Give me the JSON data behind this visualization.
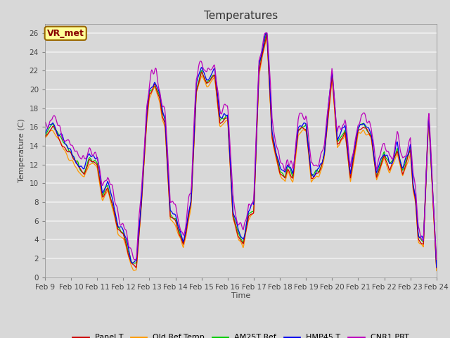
{
  "title": "Temperatures",
  "xlabel": "Time",
  "ylabel": "Temperature (C)",
  "ylim": [
    0,
    27
  ],
  "series_colors": {
    "Panel T": "#cc0000",
    "Old Ref Temp": "#ff9900",
    "AM25T Ref": "#00cc00",
    "HMP45 T": "#0000ee",
    "CNR1 PRT": "#bb00bb"
  },
  "series_names": [
    "Panel T",
    "Old Ref Temp",
    "AM25T Ref",
    "HMP45 T",
    "CNR1 PRT"
  ],
  "x_tick_labels": [
    "Feb 9",
    "Feb 10",
    "Feb 11",
    "Feb 12",
    "Feb 13",
    "Feb 14",
    "Feb 15",
    "Feb 16",
    "Feb 17",
    "Feb 18",
    "Feb 19",
    "Feb 20",
    "Feb 21",
    "Feb 22",
    "Feb 23",
    "Feb 24"
  ],
  "background_color": "#d8d8d8",
  "plot_bg_color": "#d8d8d8",
  "annotation_text": "VR_met",
  "annotation_bg": "#ffff99",
  "annotation_border": "#996600",
  "annotation_text_color": "#880000",
  "y_ticks": [
    0,
    2,
    4,
    6,
    8,
    10,
    12,
    14,
    16,
    18,
    20,
    22,
    24,
    26
  ],
  "grid_color": "#f0f0f0",
  "title_fontsize": 11,
  "n_days": 15,
  "n_per_day": 48
}
